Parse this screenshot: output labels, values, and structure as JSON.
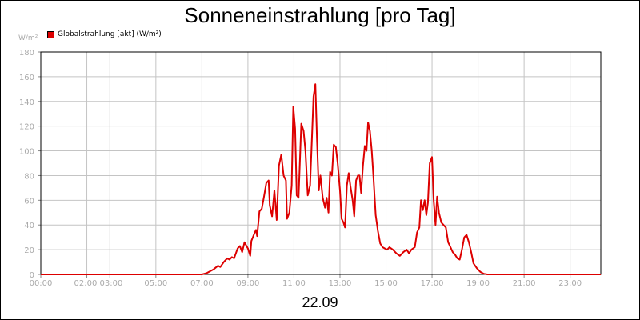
{
  "chart_data": {
    "type": "line",
    "title": "Sonneneinstrahlung [pro Tag]",
    "unit_label": "W/m²",
    "legend": {
      "label": "Globalstrahlung [akt] (W/m²)",
      "color": "#dd0000",
      "placement": "top-left"
    },
    "date_label": "22.09",
    "grid": true,
    "ylim": [
      0,
      180
    ],
    "yticks": [
      "0",
      "20",
      "40",
      "60",
      "80",
      "100",
      "120",
      "140",
      "160",
      "180"
    ],
    "xlim": [
      0,
      24.333
    ],
    "xticks": [
      {
        "pos": 0,
        "label": "00:00"
      },
      {
        "pos": 2.5,
        "label": "02:00 03:00"
      },
      {
        "pos": 5,
        "label": "05:00"
      },
      {
        "pos": 7,
        "label": "07:00"
      },
      {
        "pos": 9,
        "label": "09:00"
      },
      {
        "pos": 11,
        "label": "11:00"
      },
      {
        "pos": 13,
        "label": "13:00"
      },
      {
        "pos": 15,
        "label": "15:00"
      },
      {
        "pos": 17,
        "label": "17:00"
      },
      {
        "pos": 19,
        "label": "19:00"
      },
      {
        "pos": 21,
        "label": "21:00"
      },
      {
        "pos": 23,
        "label": "23:00"
      }
    ],
    "xgrid": [
      0,
      2,
      3,
      5,
      7,
      9,
      11,
      13,
      15,
      17,
      19,
      21,
      23
    ],
    "series": [
      {
        "name": "Globalstrahlung [akt] (W/m²)",
        "color": "#dd0000",
        "points": [
          [
            0,
            0
          ],
          [
            7.0,
            0
          ],
          [
            7.2,
            1
          ],
          [
            7.5,
            4
          ],
          [
            7.7,
            7
          ],
          [
            7.8,
            6
          ],
          [
            7.95,
            10
          ],
          [
            8.1,
            13
          ],
          [
            8.2,
            12
          ],
          [
            8.3,
            14
          ],
          [
            8.4,
            13
          ],
          [
            8.55,
            21
          ],
          [
            8.65,
            23
          ],
          [
            8.75,
            18
          ],
          [
            8.85,
            26
          ],
          [
            9.0,
            21
          ],
          [
            9.1,
            15
          ],
          [
            9.15,
            27
          ],
          [
            9.3,
            34
          ],
          [
            9.35,
            36
          ],
          [
            9.4,
            31
          ],
          [
            9.5,
            51
          ],
          [
            9.6,
            53
          ],
          [
            9.7,
            63
          ],
          [
            9.8,
            74
          ],
          [
            9.9,
            76
          ],
          [
            9.95,
            56
          ],
          [
            10.05,
            47
          ],
          [
            10.15,
            68
          ],
          [
            10.25,
            44
          ],
          [
            10.35,
            88
          ],
          [
            10.45,
            97
          ],
          [
            10.55,
            80
          ],
          [
            10.65,
            76
          ],
          [
            10.7,
            45
          ],
          [
            10.8,
            50
          ],
          [
            10.9,
            72
          ],
          [
            10.97,
            136
          ],
          [
            11.05,
            118
          ],
          [
            11.12,
            64
          ],
          [
            11.2,
            62
          ],
          [
            11.32,
            122
          ],
          [
            11.42,
            116
          ],
          [
            11.5,
            100
          ],
          [
            11.6,
            64
          ],
          [
            11.7,
            72
          ],
          [
            11.78,
            110
          ],
          [
            11.85,
            144
          ],
          [
            11.93,
            154
          ],
          [
            12.0,
            110
          ],
          [
            12.08,
            68
          ],
          [
            12.15,
            80
          ],
          [
            12.25,
            62
          ],
          [
            12.35,
            54
          ],
          [
            12.42,
            62
          ],
          [
            12.5,
            50
          ],
          [
            12.57,
            83
          ],
          [
            12.65,
            80
          ],
          [
            12.73,
            105
          ],
          [
            12.82,
            103
          ],
          [
            12.9,
            90
          ],
          [
            13.0,
            68
          ],
          [
            13.07,
            45
          ],
          [
            13.15,
            42
          ],
          [
            13.22,
            38
          ],
          [
            13.3,
            72
          ],
          [
            13.38,
            82
          ],
          [
            13.45,
            72
          ],
          [
            13.55,
            60
          ],
          [
            13.62,
            47
          ],
          [
            13.7,
            76
          ],
          [
            13.78,
            80
          ],
          [
            13.85,
            80
          ],
          [
            13.92,
            66
          ],
          [
            14.0,
            88
          ],
          [
            14.08,
            104
          ],
          [
            14.15,
            100
          ],
          [
            14.22,
            123
          ],
          [
            14.3,
            116
          ],
          [
            14.38,
            100
          ],
          [
            14.45,
            80
          ],
          [
            14.55,
            48
          ],
          [
            14.65,
            35
          ],
          [
            14.75,
            25
          ],
          [
            14.85,
            22
          ],
          [
            14.95,
            21
          ],
          [
            15.05,
            20
          ],
          [
            15.15,
            22
          ],
          [
            15.3,
            20
          ],
          [
            15.45,
            17
          ],
          [
            15.6,
            15
          ],
          [
            15.75,
            18
          ],
          [
            15.9,
            20
          ],
          [
            16.0,
            17
          ],
          [
            16.1,
            20
          ],
          [
            16.25,
            22
          ],
          [
            16.35,
            34
          ],
          [
            16.45,
            38
          ],
          [
            16.52,
            60
          ],
          [
            16.6,
            52
          ],
          [
            16.68,
            60
          ],
          [
            16.75,
            48
          ],
          [
            16.82,
            58
          ],
          [
            16.9,
            90
          ],
          [
            17.0,
            95
          ],
          [
            17.07,
            60
          ],
          [
            17.15,
            40
          ],
          [
            17.22,
            63
          ],
          [
            17.3,
            50
          ],
          [
            17.4,
            42
          ],
          [
            17.5,
            40
          ],
          [
            17.6,
            38
          ],
          [
            17.7,
            26
          ],
          [
            17.8,
            22
          ],
          [
            17.9,
            18
          ],
          [
            18.0,
            16
          ],
          [
            18.1,
            13
          ],
          [
            18.2,
            12
          ],
          [
            18.3,
            20
          ],
          [
            18.4,
            30
          ],
          [
            18.5,
            32
          ],
          [
            18.6,
            26
          ],
          [
            18.7,
            18
          ],
          [
            18.8,
            9
          ],
          [
            18.95,
            5
          ],
          [
            19.1,
            2
          ],
          [
            19.25,
            0.5
          ],
          [
            19.4,
            0
          ],
          [
            24.333,
            0
          ]
        ]
      }
    ]
  }
}
